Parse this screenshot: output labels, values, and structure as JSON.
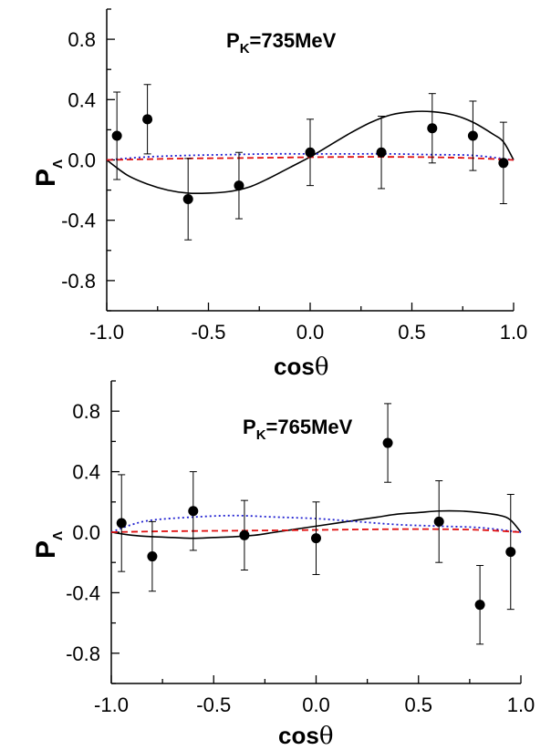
{
  "chart_data": [
    {
      "type": "scatter",
      "title": "P",
      "title_sub": "K",
      "title_rest": "=735MeV",
      "xlabel": "cos",
      "xlabel_symbol": "θ",
      "ylabel": "P",
      "ylabel_sub": "Λ",
      "xlim": [
        -1.0,
        1.0
      ],
      "ylim": [
        -1.0,
        1.0
      ],
      "xticks": [
        "-1.0",
        "-0.5",
        "0.0",
        "0.5",
        "1.0"
      ],
      "xtick_values": [
        -1.0,
        -0.5,
        0.0,
        0.5,
        1.0
      ],
      "yticks": [
        "0.8",
        "0.4",
        "0.0",
        "-0.4",
        "-0.8"
      ],
      "ytick_values": [
        0.8,
        0.4,
        0.0,
        -0.4,
        -0.8
      ],
      "points": [
        {
          "x": -0.95,
          "y": 0.16,
          "err": 0.29
        },
        {
          "x": -0.8,
          "y": 0.27,
          "err": 0.23
        },
        {
          "x": -0.6,
          "y": -0.26,
          "err": 0.27
        },
        {
          "x": -0.35,
          "y": -0.17,
          "err": 0.22
        },
        {
          "x": 0.0,
          "y": 0.05,
          "err": 0.22
        },
        {
          "x": 0.35,
          "y": 0.05,
          "err": 0.24
        },
        {
          "x": 0.6,
          "y": 0.21,
          "err": 0.23
        },
        {
          "x": 0.8,
          "y": 0.16,
          "err": 0.23
        },
        {
          "x": 0.95,
          "y": -0.02,
          "err": 0.27
        }
      ],
      "curves": [
        {
          "style": "solid",
          "color": "#000000",
          "x": [
            -1.0,
            -0.9,
            -0.8,
            -0.7,
            -0.6,
            -0.5,
            -0.4,
            -0.3,
            -0.2,
            -0.1,
            0.0,
            0.1,
            0.2,
            0.3,
            0.4,
            0.5,
            0.6,
            0.7,
            0.8,
            0.9,
            0.95,
            1.0
          ],
          "y": [
            0.0,
            -0.1,
            -0.16,
            -0.2,
            -0.22,
            -0.22,
            -0.21,
            -0.18,
            -0.12,
            -0.05,
            0.02,
            0.1,
            0.18,
            0.25,
            0.3,
            0.32,
            0.32,
            0.3,
            0.25,
            0.17,
            0.12,
            0.0
          ]
        },
        {
          "style": "dotted",
          "color": "#1f1fd0",
          "x": [
            -1.0,
            -0.8,
            -0.6,
            -0.4,
            -0.2,
            0.0,
            0.2,
            0.4,
            0.6,
            0.8,
            1.0
          ],
          "y": [
            0.0,
            0.02,
            0.03,
            0.035,
            0.04,
            0.04,
            0.04,
            0.04,
            0.035,
            0.03,
            0.0
          ]
        },
        {
          "style": "dashed",
          "color": "#e01010",
          "x": [
            -1.0,
            -0.8,
            -0.6,
            -0.4,
            -0.2,
            0.0,
            0.2,
            0.4,
            0.6,
            0.8,
            1.0
          ],
          "y": [
            0.0,
            0.005,
            0.01,
            0.012,
            0.015,
            0.018,
            0.02,
            0.02,
            0.018,
            0.012,
            0.0
          ]
        }
      ]
    },
    {
      "type": "scatter",
      "title": "P",
      "title_sub": "K",
      "title_rest": "=765MeV",
      "xlabel": "cos",
      "xlabel_symbol": "θ",
      "ylabel": "P",
      "ylabel_sub": "Λ",
      "xlim": [
        -1.0,
        1.0
      ],
      "ylim": [
        -1.0,
        1.0
      ],
      "xticks": [
        "-1.0",
        "-0.5",
        "0.0",
        "0.5",
        "1.0"
      ],
      "xtick_values": [
        -1.0,
        -0.5,
        0.0,
        0.5,
        1.0
      ],
      "yticks": [
        "0.8",
        "0.4",
        "0.0",
        "-0.4",
        "-0.8"
      ],
      "ytick_values": [
        0.8,
        0.4,
        0.0,
        -0.4,
        -0.8
      ],
      "points": [
        {
          "x": -0.95,
          "y": 0.06,
          "err": 0.32
        },
        {
          "x": -0.8,
          "y": -0.16,
          "err": 0.23
        },
        {
          "x": -0.6,
          "y": 0.14,
          "err": 0.26
        },
        {
          "x": -0.35,
          "y": -0.02,
          "err": 0.23
        },
        {
          "x": 0.0,
          "y": -0.04,
          "err": 0.24
        },
        {
          "x": 0.35,
          "y": 0.59,
          "err": 0.26
        },
        {
          "x": 0.6,
          "y": 0.07,
          "err": 0.27
        },
        {
          "x": 0.8,
          "y": -0.48,
          "err": 0.26
        },
        {
          "x": 0.95,
          "y": -0.13,
          "err": 0.38
        }
      ],
      "curves": [
        {
          "style": "solid",
          "color": "#000000",
          "x": [
            -1.0,
            -0.9,
            -0.8,
            -0.7,
            -0.6,
            -0.5,
            -0.4,
            -0.3,
            -0.2,
            -0.1,
            0.0,
            0.1,
            0.2,
            0.3,
            0.4,
            0.5,
            0.6,
            0.7,
            0.8,
            0.9,
            0.95,
            1.0
          ],
          "y": [
            0.0,
            -0.02,
            -0.03,
            -0.035,
            -0.04,
            -0.035,
            -0.03,
            -0.02,
            0.0,
            0.02,
            0.04,
            0.06,
            0.08,
            0.1,
            0.12,
            0.13,
            0.14,
            0.14,
            0.13,
            0.11,
            0.08,
            0.0
          ]
        },
        {
          "style": "dotted",
          "color": "#1f1fd0",
          "x": [
            -1.0,
            -0.9,
            -0.8,
            -0.6,
            -0.4,
            -0.2,
            0.0,
            0.2,
            0.4,
            0.6,
            0.8,
            1.0
          ],
          "y": [
            0.0,
            0.05,
            0.08,
            0.1,
            0.11,
            0.1,
            0.09,
            0.07,
            0.05,
            0.04,
            0.03,
            0.0
          ]
        },
        {
          "style": "dashed",
          "color": "#e01010",
          "x": [
            -1.0,
            -0.8,
            -0.6,
            -0.4,
            -0.2,
            0.0,
            0.2,
            0.4,
            0.6,
            0.8,
            1.0
          ],
          "y": [
            0.0,
            0.005,
            0.008,
            0.01,
            0.012,
            0.015,
            0.018,
            0.02,
            0.02,
            0.015,
            0.0
          ]
        }
      ]
    }
  ]
}
